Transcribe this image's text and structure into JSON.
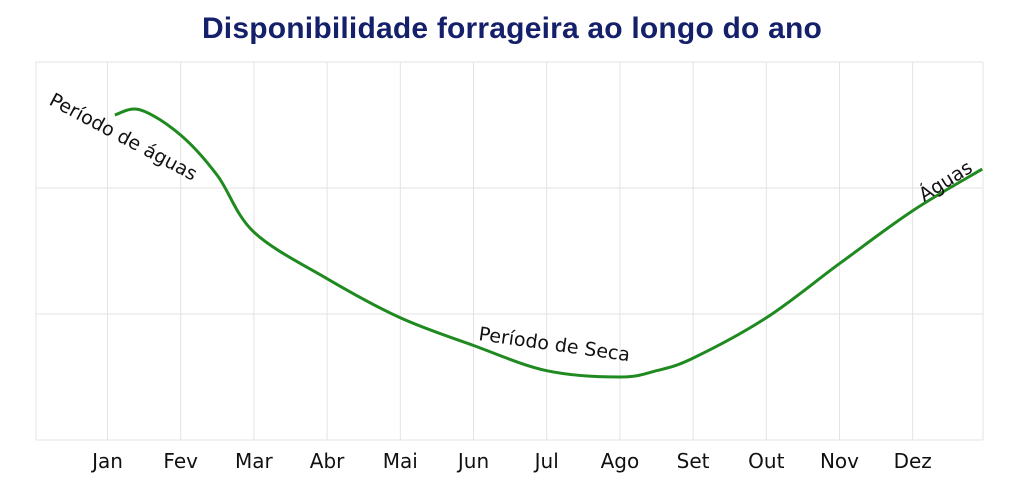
{
  "chart_data": {
    "type": "line",
    "title": "Disponibilidade forrageira ao longo do ano",
    "xlabel": "",
    "ylabel": "",
    "categories": [
      "Jan",
      "Fev",
      "Mar",
      "Abr",
      "Mai",
      "Jun",
      "Jul",
      "Ago",
      "Set",
      "Out",
      "Nov",
      "Dez"
    ],
    "series": [
      {
        "color": "#1f8a1f",
        "x": [
          0.1,
          0.45,
          1.0,
          1.5,
          2.0,
          3.0,
          4.0,
          5.0,
          6.0,
          7.0,
          7.5,
          8.0,
          9.0,
          10.0,
          11.0,
          11.95
        ],
        "values": [
          2.58,
          2.62,
          2.42,
          2.1,
          1.65,
          1.28,
          0.97,
          0.75,
          0.55,
          0.5,
          0.55,
          0.65,
          0.97,
          1.4,
          1.82,
          2.15
        ]
      }
    ],
    "ylim": [
      0,
      3
    ],
    "grid": true,
    "annotations": [
      {
        "text": "Período de águas"
      },
      {
        "text": "Período de  Seca"
      },
      {
        "text": "Águas"
      }
    ]
  }
}
